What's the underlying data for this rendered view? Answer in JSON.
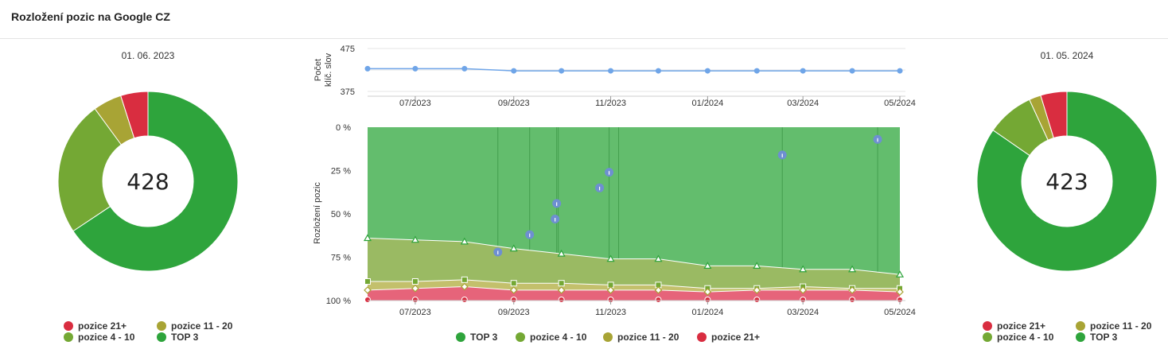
{
  "title": "Rozložení pozic na Google CZ",
  "colors": {
    "top3": "#2ea43c",
    "pos4_10": "#74a834",
    "pos11_20": "#a8a435",
    "pos21": "#d92d40",
    "line": "#6fa5e8",
    "annotation": "#6e8fd1"
  },
  "left_donut": {
    "date": "01. 06. 2023",
    "total": "428",
    "legend": [
      "pozice 21+",
      "pozice 11 - 20",
      "pozice 4 - 10",
      "TOP 3"
    ]
  },
  "right_donut": {
    "date": "01. 05. 2024",
    "total": "423",
    "legend": [
      "pozice 21+",
      "pozice 11 - 20",
      "pozice 4 - 10",
      "TOP 3"
    ]
  },
  "top_chart": {
    "ylabel_line1": "Počet",
    "ylabel_line2": "klíč. slov"
  },
  "area_chart": {
    "ylabel": "Rozložení pozic"
  },
  "center_legend": [
    "TOP 3",
    "pozice 4 - 10",
    "pozice 11 - 20",
    "pozice 21+"
  ],
  "chart_data": [
    {
      "type": "pie",
      "chart": "left-donut",
      "categories": [
        "TOP 3",
        "pozice 4 - 10",
        "pozice 11 - 20",
        "pozice 21+"
      ],
      "values": [
        281,
        104,
        22,
        21
      ],
      "center_label": "428",
      "subtitle": "01. 06. 2023"
    },
    {
      "type": "line",
      "chart": "keyword-count",
      "ylabel": "Počet klíč. slov",
      "ylim": [
        375,
        475
      ],
      "yticks": [
        "475",
        "375"
      ],
      "x": [
        "2023-06-01",
        "2023-07-01",
        "2023-08-01",
        "2023-09-01",
        "2023-10-01",
        "2023-11-01",
        "2023-12-01",
        "2024-01-01",
        "2024-02-01",
        "2024-03-01",
        "2024-04-01",
        "2024-05-01"
      ],
      "xticks": [
        "07/2023",
        "09/2023",
        "11/2023",
        "01/2024",
        "03/2024",
        "05/2024"
      ],
      "values": [
        428,
        428,
        428,
        423,
        423,
        423,
        423,
        423,
        423,
        423,
        423,
        423
      ]
    },
    {
      "type": "area",
      "chart": "position-distribution",
      "ylabel": "Rozložení pozic",
      "yticks": [
        "0 %",
        "25 %",
        "50 %",
        "75 %",
        "100 %"
      ],
      "x": [
        "2023-06-01",
        "2023-07-01",
        "2023-08-01",
        "2023-09-01",
        "2023-10-01",
        "2023-11-01",
        "2023-12-01",
        "2024-01-01",
        "2024-02-01",
        "2024-03-01",
        "2024-04-01",
        "2024-05-01"
      ],
      "xticks": [
        "07/2023",
        "09/2023",
        "11/2023",
        "01/2024",
        "03/2024",
        "05/2024"
      ],
      "series": [
        {
          "name": "TOP 3",
          "boundary_percent": [
            64,
            65,
            66,
            70,
            73,
            76,
            76,
            80,
            80,
            82,
            82,
            85
          ]
        },
        {
          "name": "pozice 4 - 10",
          "boundary_percent": [
            89,
            89,
            88,
            90,
            90,
            91,
            91,
            93,
            93,
            92,
            93,
            93
          ]
        },
        {
          "name": "pozice 11 - 20",
          "boundary_percent": [
            94,
            93,
            92,
            94,
            94,
            94,
            94,
            95,
            94,
            94,
            94,
            95
          ]
        },
        {
          "name": "pozice 21+",
          "boundary_percent": [
            100,
            100,
            100,
            100,
            100,
            100,
            100,
            100,
            100,
            100,
            100,
            100
          ]
        }
      ],
      "annotations": [
        {
          "date": "2023-08-22",
          "percent": 72
        },
        {
          "date": "2023-09-11",
          "percent": 62
        },
        {
          "date": "2023-09-27",
          "percent": 53
        },
        {
          "date": "2023-09-28",
          "percent": 44
        },
        {
          "date": "2023-10-25",
          "percent": 35
        },
        {
          "date": "2023-10-31",
          "percent": 26
        },
        {
          "date": "2024-02-17",
          "percent": 16
        },
        {
          "date": "2024-04-17",
          "percent": 7
        }
      ]
    },
    {
      "type": "pie",
      "chart": "right-donut",
      "categories": [
        "TOP 3",
        "pozice 4 - 10",
        "pozice 11 - 20",
        "pozice 21+"
      ],
      "values": [
        358,
        36,
        9,
        20
      ],
      "center_label": "423",
      "subtitle": "01. 05. 2024"
    }
  ]
}
